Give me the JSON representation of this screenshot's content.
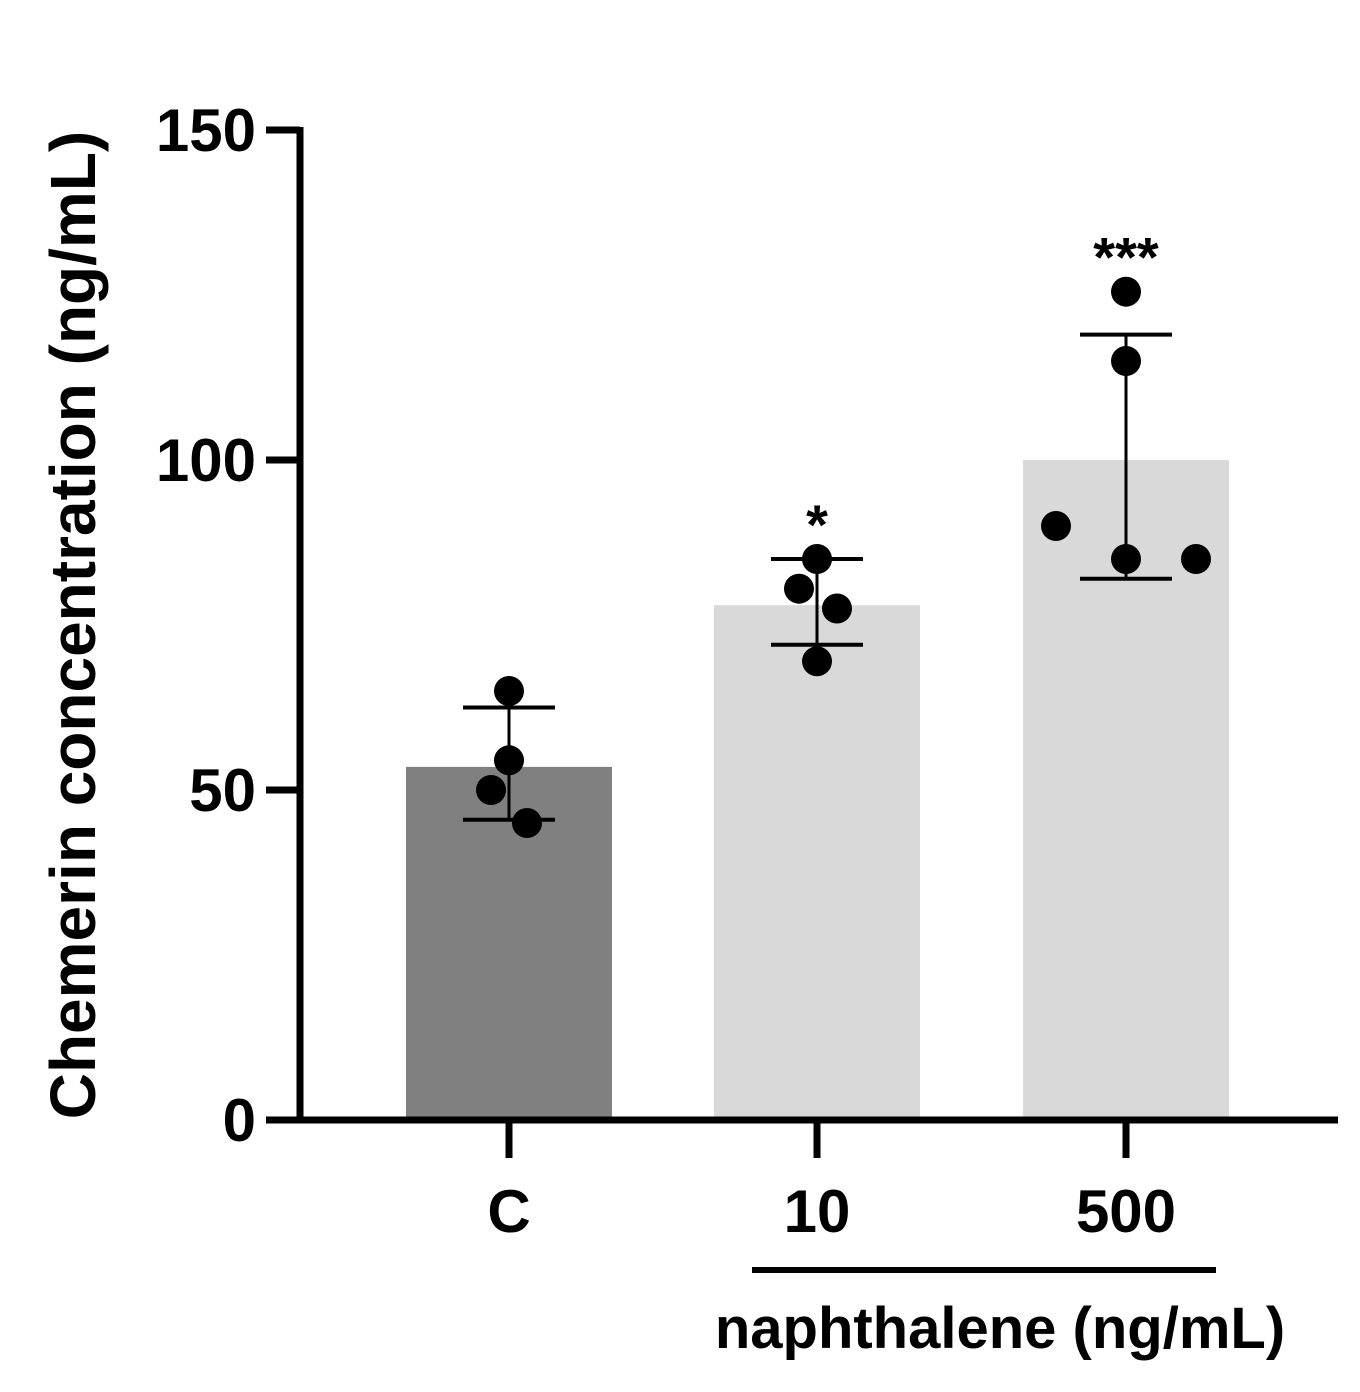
{
  "chart_data": {
    "type": "bar",
    "title": "",
    "xlabel": "",
    "ylabel": "Chemerin concentration (ng/mL)",
    "group_label": "naphthalene (ng/mL)",
    "ylim": [
      0,
      150
    ],
    "yticks": [
      0,
      50,
      100,
      150
    ],
    "categories": [
      "C",
      "10",
      "500"
    ],
    "grouped_categories": [
      "10",
      "500"
    ],
    "bars": [
      {
        "category": "C",
        "mean": 53.5,
        "sd_low": 45.5,
        "sd_high": 62.5,
        "points": [
          65,
          54.5,
          50,
          45
        ],
        "significance": "",
        "color": "#808080"
      },
      {
        "category": "10",
        "mean": 78,
        "sd_low": 72,
        "sd_high": 85,
        "points": [
          85,
          80.5,
          77.5,
          69.5
        ],
        "significance": "*",
        "color": "#d9d9d9"
      },
      {
        "category": "500",
        "mean": 100,
        "sd_low": 82,
        "sd_high": 119,
        "points": [
          125.5,
          115,
          90,
          85,
          85
        ],
        "significance": "***",
        "color": "#d9d9d9"
      }
    ],
    "grid": false,
    "legend": "none"
  }
}
